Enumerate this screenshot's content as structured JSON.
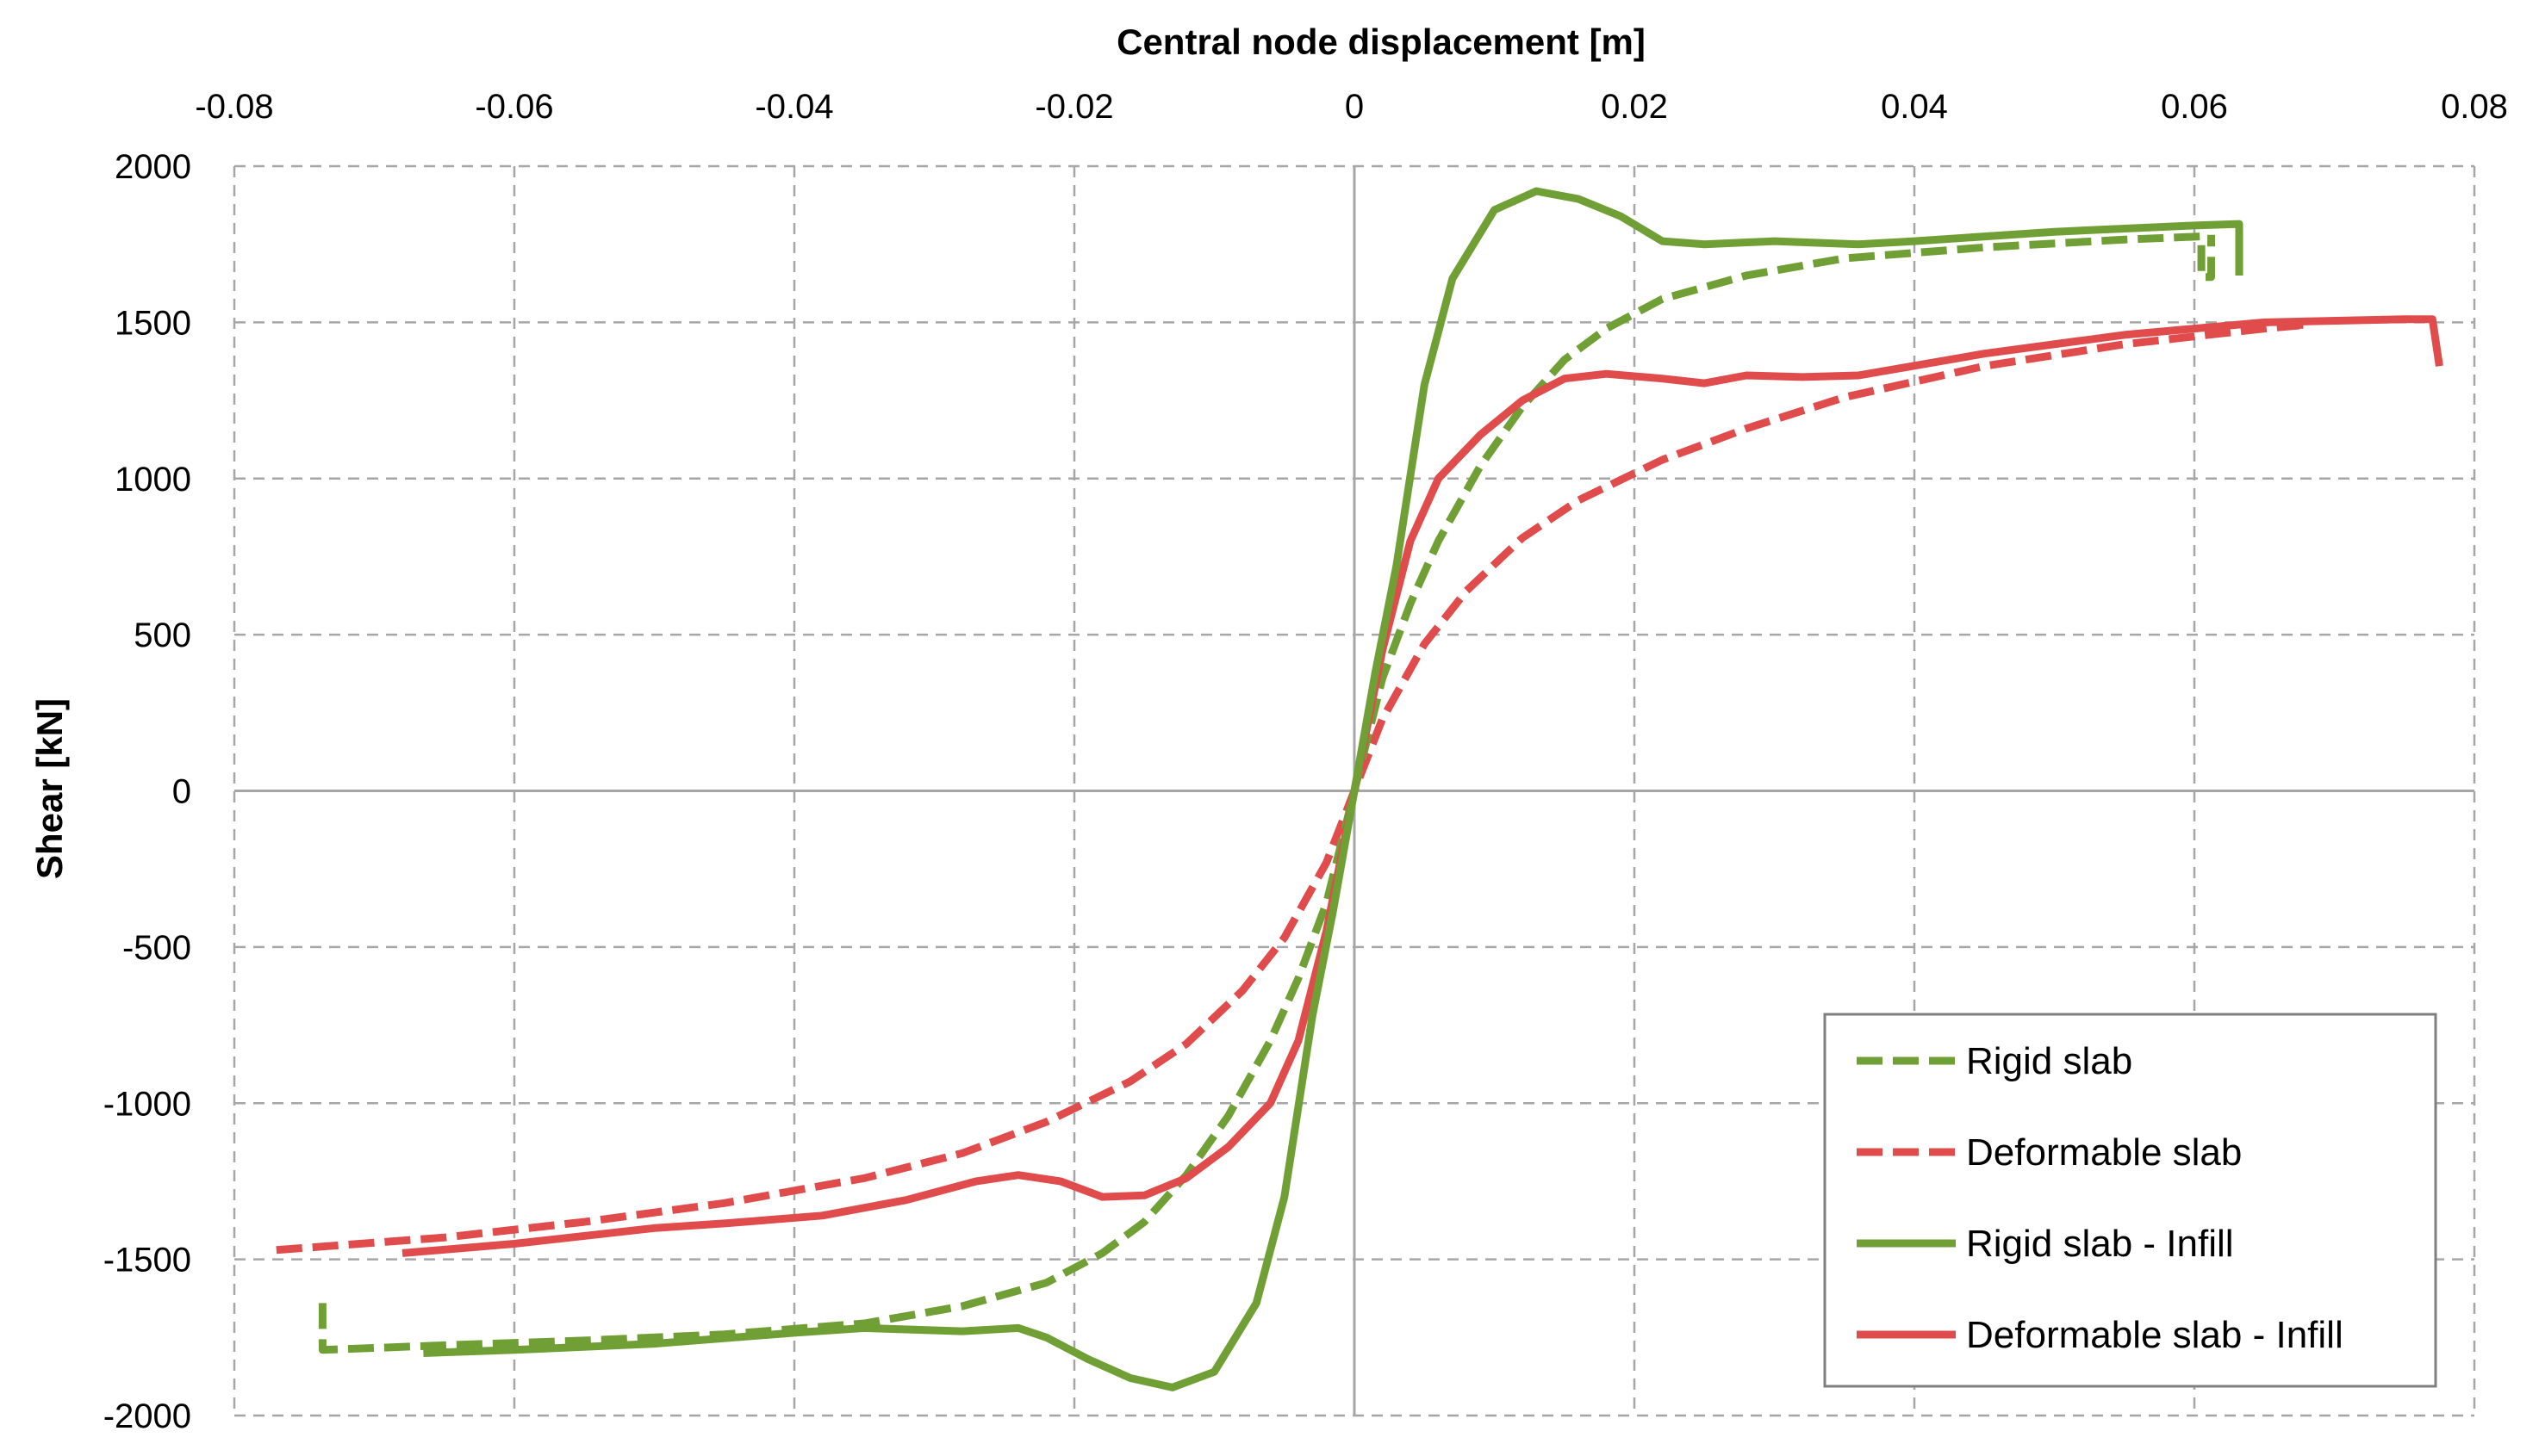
{
  "chart_data": {
    "type": "line",
    "title": "",
    "xlabel": "Central node displacement [m]",
    "ylabel": "Shear [kN]",
    "xlim": [
      -0.08,
      0.08
    ],
    "ylim": [
      -2000,
      2000
    ],
    "x_ticks": [
      -0.08,
      -0.06,
      -0.04,
      -0.02,
      0,
      0.02,
      0.04,
      0.06,
      0.08
    ],
    "x_tick_labels": [
      "-0.08",
      "-0.06",
      "-0.04",
      "-0.02",
      "0",
      "0.02",
      "0.04",
      "0.06",
      "0.08"
    ],
    "y_ticks": [
      2000,
      1500,
      1000,
      500,
      0,
      -500,
      -1000,
      -1500,
      -2000
    ],
    "y_tick_labels": [
      "2000",
      "1500",
      "1000",
      "500",
      "0",
      "-500",
      "-1000",
      "-1500",
      "-2000"
    ],
    "x_axis_position": "top",
    "grid": true,
    "legend_position": "bottom-right",
    "series": [
      {
        "name": "Rigid slab",
        "color": "#70a035",
        "style": "dashed",
        "points": [
          [
            -0.0737,
            -1640
          ],
          [
            -0.0737,
            -1790
          ],
          [
            -0.065,
            -1775
          ],
          [
            -0.055,
            -1760
          ],
          [
            -0.045,
            -1740
          ],
          [
            -0.035,
            -1705
          ],
          [
            -0.028,
            -1650
          ],
          [
            -0.022,
            -1575
          ],
          [
            -0.018,
            -1480
          ],
          [
            -0.015,
            -1380
          ],
          [
            -0.012,
            -1230
          ],
          [
            -0.009,
            -1040
          ],
          [
            -0.006,
            -800
          ],
          [
            -0.004,
            -600
          ],
          [
            -0.002,
            -360
          ],
          [
            0,
            0
          ],
          [
            0.002,
            360
          ],
          [
            0.004,
            600
          ],
          [
            0.006,
            800
          ],
          [
            0.009,
            1040
          ],
          [
            0.012,
            1230
          ],
          [
            0.015,
            1380
          ],
          [
            0.018,
            1480
          ],
          [
            0.022,
            1575
          ],
          [
            0.028,
            1650
          ],
          [
            0.035,
            1705
          ],
          [
            0.045,
            1740
          ],
          [
            0.055,
            1765
          ],
          [
            0.0605,
            1775
          ],
          [
            0.0605,
            1645
          ],
          [
            0.0612,
            1645
          ],
          [
            0.0612,
            1780
          ]
        ]
      },
      {
        "name": "Deformable slab",
        "color": "#e04b4b",
        "style": "dashed",
        "points": [
          [
            -0.077,
            -1470
          ],
          [
            -0.065,
            -1430
          ],
          [
            -0.055,
            -1380
          ],
          [
            -0.045,
            -1320
          ],
          [
            -0.035,
            -1240
          ],
          [
            -0.028,
            -1160
          ],
          [
            -0.022,
            -1060
          ],
          [
            -0.016,
            -930
          ],
          [
            -0.012,
            -810
          ],
          [
            -0.008,
            -640
          ],
          [
            -0.005,
            -470
          ],
          [
            -0.002,
            -230
          ],
          [
            0,
            0
          ],
          [
            0.002,
            230
          ],
          [
            0.005,
            470
          ],
          [
            0.008,
            640
          ],
          [
            0.012,
            810
          ],
          [
            0.016,
            930
          ],
          [
            0.022,
            1060
          ],
          [
            0.028,
            1160
          ],
          [
            0.035,
            1260
          ],
          [
            0.045,
            1360
          ],
          [
            0.055,
            1430
          ],
          [
            0.065,
            1480
          ],
          [
            0.0675,
            1490
          ],
          [
            0.0675,
            1455
          ]
        ]
      },
      {
        "name": "Rigid slab - Infill",
        "color": "#70a035",
        "style": "solid",
        "points": [
          [
            -0.0665,
            -1800
          ],
          [
            -0.06,
            -1790
          ],
          [
            -0.05,
            -1770
          ],
          [
            -0.04,
            -1735
          ],
          [
            -0.035,
            -1720
          ],
          [
            -0.028,
            -1730
          ],
          [
            -0.024,
            -1720
          ],
          [
            -0.022,
            -1750
          ],
          [
            -0.019,
            -1820
          ],
          [
            -0.016,
            -1880
          ],
          [
            -0.013,
            -1910
          ],
          [
            -0.01,
            -1860
          ],
          [
            -0.007,
            -1640
          ],
          [
            -0.005,
            -1300
          ],
          [
            -0.003,
            -720
          ],
          [
            -0.0015,
            -380
          ],
          [
            0,
            0
          ],
          [
            0.0015,
            380
          ],
          [
            0.003,
            720
          ],
          [
            0.005,
            1300
          ],
          [
            0.007,
            1640
          ],
          [
            0.01,
            1860
          ],
          [
            0.013,
            1920
          ],
          [
            0.016,
            1895
          ],
          [
            0.019,
            1840
          ],
          [
            0.022,
            1760
          ],
          [
            0.025,
            1750
          ],
          [
            0.03,
            1760
          ],
          [
            0.036,
            1750
          ],
          [
            0.04,
            1760
          ],
          [
            0.05,
            1790
          ],
          [
            0.06,
            1810
          ],
          [
            0.0632,
            1815
          ],
          [
            0.0632,
            1650
          ]
        ]
      },
      {
        "name": "Deformable slab - Infill",
        "color": "#e04b4b",
        "style": "solid",
        "points": [
          [
            -0.068,
            -1480
          ],
          [
            -0.06,
            -1450
          ],
          [
            -0.05,
            -1400
          ],
          [
            -0.045,
            -1385
          ],
          [
            -0.038,
            -1360
          ],
          [
            -0.032,
            -1310
          ],
          [
            -0.027,
            -1250
          ],
          [
            -0.024,
            -1230
          ],
          [
            -0.021,
            -1250
          ],
          [
            -0.018,
            -1300
          ],
          [
            -0.015,
            -1295
          ],
          [
            -0.012,
            -1240
          ],
          [
            -0.009,
            -1140
          ],
          [
            -0.006,
            -1000
          ],
          [
            -0.004,
            -800
          ],
          [
            -0.002,
            -450
          ],
          [
            0,
            0
          ],
          [
            0.002,
            450
          ],
          [
            0.004,
            800
          ],
          [
            0.006,
            1000
          ],
          [
            0.009,
            1140
          ],
          [
            0.012,
            1250
          ],
          [
            0.015,
            1320
          ],
          [
            0.018,
            1335
          ],
          [
            0.022,
            1320
          ],
          [
            0.025,
            1305
          ],
          [
            0.028,
            1330
          ],
          [
            0.032,
            1325
          ],
          [
            0.036,
            1330
          ],
          [
            0.045,
            1400
          ],
          [
            0.055,
            1460
          ],
          [
            0.065,
            1500
          ],
          [
            0.075,
            1510
          ],
          [
            0.077,
            1510
          ],
          [
            0.0775,
            1360
          ]
        ]
      }
    ]
  }
}
